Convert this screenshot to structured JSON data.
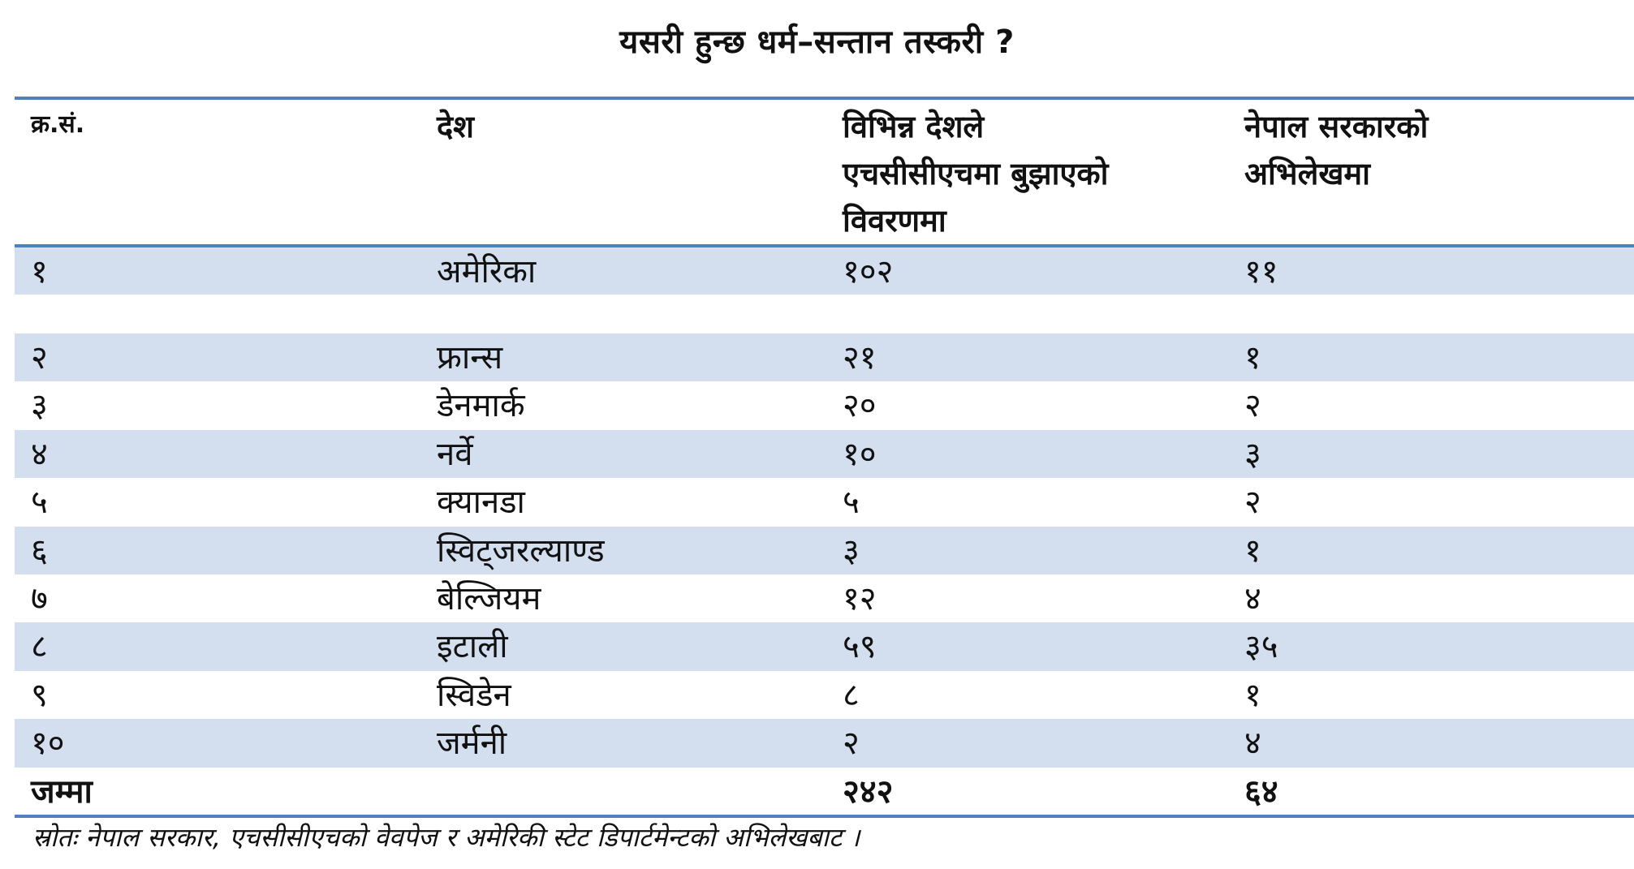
{
  "title": "यसरी हुन्छ धर्म–सन्तान तस्करी ?",
  "table": {
    "headers": [
      [
        "क्र.सं."
      ],
      [
        "देश"
      ],
      [
        "विभिन्न देशले",
        "एचसीसीएचमा बुझाएको",
        "विवरणमा"
      ],
      [
        "नेपाल सरकारको",
        "अभिलेखमा"
      ]
    ],
    "rows": [
      [
        "१",
        "अमेरिका",
        "१०२",
        "११"
      ],
      [
        "२",
        "फ्रान्स",
        "२१",
        "१"
      ],
      [
        "३",
        "डेनमार्क",
        "२०",
        "२"
      ],
      [
        "४",
        "नर्वे",
        "१०",
        "३"
      ],
      [
        "५",
        "क्यानडा",
        "५",
        "२"
      ],
      [
        "६",
        "स्विट्जरल्याण्ड",
        "३",
        "१"
      ],
      [
        "७",
        "बेल्जियम",
        "१२",
        "४"
      ],
      [
        "८",
        "इटाली",
        "५९",
        "३५"
      ],
      [
        "९",
        "स्विडेन",
        "८",
        "१"
      ],
      [
        "१०",
        "जर्मनी",
        "२",
        "४"
      ]
    ],
    "total": [
      "जम्मा",
      "",
      "२४२",
      "६४"
    ]
  },
  "source": "स्रोतः नेपाल सरकार, एचसीसीएचको वेवपेज र अमेरिकी स्टेट डिपार्टमेन्टको अभिलेखबाट ।",
  "colors": {
    "rule": "#4f81bd",
    "shade": "#d3dfee"
  }
}
